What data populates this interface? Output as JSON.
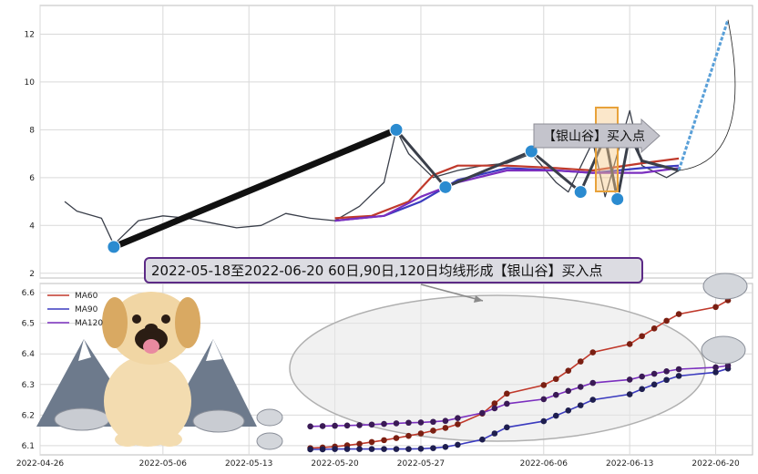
{
  "chart_data": [
    {
      "type": "line",
      "title": "",
      "ylim": [
        1.8,
        13.2
      ],
      "yticks": [
        2,
        4,
        6,
        8,
        10,
        12
      ],
      "xlim": [
        "2022-04-26",
        "2022-06-23"
      ],
      "grid": true,
      "series": [
        {
          "role": "price",
          "color": "#3a3f4a",
          "points": [
            [
              "2022-04-28",
              5.0
            ],
            [
              "2022-04-29",
              4.6
            ],
            [
              "2022-05-01",
              4.3
            ],
            [
              "2022-05-02",
              3.2
            ],
            [
              "2022-05-04",
              4.2
            ],
            [
              "2022-05-06",
              4.4
            ],
            [
              "2022-05-08",
              4.3
            ],
            [
              "2022-05-10",
              4.1
            ],
            [
              "2022-05-12",
              3.9
            ],
            [
              "2022-05-14",
              4.0
            ],
            [
              "2022-05-16",
              4.5
            ],
            [
              "2022-05-18",
              4.3
            ],
            [
              "2022-05-20",
              4.2
            ],
            [
              "2022-05-22",
              4.8
            ],
            [
              "2022-05-24",
              5.8
            ],
            [
              "2022-05-25",
              8.0
            ],
            [
              "2022-05-26",
              7.0
            ],
            [
              "2022-05-28",
              6.0
            ],
            [
              "2022-05-30",
              6.3
            ],
            [
              "2022-06-01",
              6.5
            ],
            [
              "2022-06-03",
              6.6
            ],
            [
              "2022-06-05",
              7.0
            ],
            [
              "2022-06-07",
              5.8
            ],
            [
              "2022-06-08",
              5.4
            ],
            [
              "2022-06-10",
              7.5
            ],
            [
              "2022-06-11",
              5.2
            ],
            [
              "2022-06-13",
              8.8
            ],
            [
              "2022-06-14",
              6.5
            ],
            [
              "2022-06-16",
              6.0
            ],
            [
              "2022-06-17",
              6.3
            ]
          ]
        },
        {
          "name": "MA60",
          "color": "#c0392b",
          "points": [
            [
              "2022-05-20",
              4.3
            ],
            [
              "2022-05-23",
              4.4
            ],
            [
              "2022-05-26",
              5.0
            ],
            [
              "2022-05-28",
              6.1
            ],
            [
              "2022-05-30",
              6.5
            ],
            [
              "2022-06-03",
              6.5
            ],
            [
              "2022-06-07",
              6.4
            ],
            [
              "2022-06-10",
              6.3
            ],
            [
              "2022-06-14",
              6.6
            ],
            [
              "2022-06-17",
              6.8
            ]
          ]
        },
        {
          "name": "MA90",
          "color": "#3b3bbf",
          "points": [
            [
              "2022-05-20",
              4.2
            ],
            [
              "2022-05-24",
              4.4
            ],
            [
              "2022-05-27",
              5.0
            ],
            [
              "2022-05-30",
              5.9
            ],
            [
              "2022-06-03",
              6.4
            ],
            [
              "2022-06-07",
              6.3
            ],
            [
              "2022-06-10",
              6.2
            ],
            [
              "2022-06-14",
              6.4
            ],
            [
              "2022-06-17",
              6.5
            ]
          ]
        },
        {
          "name": "MA120",
          "color": "#7b2fbf",
          "points": [
            [
              "2022-05-20",
              4.2
            ],
            [
              "2022-05-24",
              4.4
            ],
            [
              "2022-05-27",
              5.2
            ],
            [
              "2022-05-30",
              5.8
            ],
            [
              "2022-06-03",
              6.3
            ],
            [
              "2022-06-07",
              6.3
            ],
            [
              "2022-06-10",
              6.2
            ],
            [
              "2022-06-14",
              6.2
            ],
            [
              "2022-06-17",
              6.4
            ]
          ]
        },
        {
          "role": "trend",
          "color": "#111111",
          "points": [
            [
              "2022-05-02",
              3.1
            ],
            [
              "2022-05-25",
              8.0
            ]
          ]
        },
        {
          "role": "zigzag",
          "color": "#3a3f4a",
          "points": [
            [
              "2022-05-25",
              8.0
            ],
            [
              "2022-05-29",
              5.6
            ],
            [
              "2022-06-05",
              7.1
            ],
            [
              "2022-06-09",
              5.4
            ],
            [
              "2022-06-11",
              7.7
            ],
            [
              "2022-06-12",
              5.1
            ],
            [
              "2022-06-13",
              7.8
            ],
            [
              "2022-06-14",
              6.7
            ],
            [
              "2022-06-17",
              6.3
            ]
          ]
        },
        {
          "role": "projection",
          "color": "#5aa0d8",
          "points": [
            [
              "2022-06-17",
              6.3
            ],
            [
              "2022-06-21",
              12.6
            ]
          ]
        }
      ],
      "pivots": [
        [
          "2022-05-02",
          3.1
        ],
        [
          "2022-05-25",
          8.0
        ],
        [
          "2022-05-29",
          5.6
        ],
        [
          "2022-06-05",
          7.1
        ],
        [
          "2022-06-09",
          5.4
        ],
        [
          "2022-06-11",
          7.7
        ],
        [
          "2022-06-12",
          5.1
        ]
      ],
      "annotation": "【银山谷】买入点"
    },
    {
      "type": "line",
      "ylim": [
        6.07,
        6.63
      ],
      "yticks": [
        6.1,
        6.2,
        6.3,
        6.4,
        6.5,
        6.6
      ],
      "xlim": [
        "2022-04-26",
        "2022-06-23"
      ],
      "xticks": [
        "2022-04-26",
        "2022-05-06",
        "2022-05-13",
        "2022-05-20",
        "2022-05-27",
        "2022-06-06",
        "2022-06-13",
        "2022-06-20"
      ],
      "legend": "top-left",
      "grid": true,
      "series": [
        {
          "name": "MA60",
          "color": "#c0392b",
          "points": [
            [
              "2022-05-18",
              6.092
            ],
            [
              "2022-05-19",
              6.094
            ],
            [
              "2022-05-20",
              6.097
            ],
            [
              "2022-05-21",
              6.101
            ],
            [
              "2022-05-22",
              6.106
            ],
            [
              "2022-05-23",
              6.112
            ],
            [
              "2022-05-24",
              6.118
            ],
            [
              "2022-05-25",
              6.125
            ],
            [
              "2022-05-26",
              6.132
            ],
            [
              "2022-05-27",
              6.14
            ],
            [
              "2022-05-28",
              6.149
            ],
            [
              "2022-05-29",
              6.158
            ],
            [
              "2022-05-30",
              6.17
            ],
            [
              "2022-06-01",
              6.205
            ],
            [
              "2022-06-02",
              6.238
            ],
            [
              "2022-06-03",
              6.27
            ],
            [
              "2022-06-06",
              6.298
            ],
            [
              "2022-06-07",
              6.318
            ],
            [
              "2022-06-08",
              6.345
            ],
            [
              "2022-06-09",
              6.375
            ],
            [
              "2022-06-10",
              6.405
            ],
            [
              "2022-06-13",
              6.432
            ],
            [
              "2022-06-14",
              6.458
            ],
            [
              "2022-06-15",
              6.483
            ],
            [
              "2022-06-16",
              6.508
            ],
            [
              "2022-06-17",
              6.53
            ],
            [
              "2022-06-20",
              6.553
            ],
            [
              "2022-06-21",
              6.575
            ]
          ]
        },
        {
          "name": "MA90",
          "color": "#3b3bbf",
          "points": [
            [
              "2022-05-18",
              6.088
            ],
            [
              "2022-05-19",
              6.088
            ],
            [
              "2022-05-20",
              6.089
            ],
            [
              "2022-05-21",
              6.089
            ],
            [
              "2022-05-22",
              6.089
            ],
            [
              "2022-05-23",
              6.089
            ],
            [
              "2022-05-24",
              6.089
            ],
            [
              "2022-05-25",
              6.089
            ],
            [
              "2022-05-26",
              6.089
            ],
            [
              "2022-05-27",
              6.09
            ],
            [
              "2022-05-28",
              6.092
            ],
            [
              "2022-05-29",
              6.096
            ],
            [
              "2022-05-30",
              6.103
            ],
            [
              "2022-06-01",
              6.12
            ],
            [
              "2022-06-02",
              6.14
            ],
            [
              "2022-06-03",
              6.16
            ],
            [
              "2022-06-06",
              6.18
            ],
            [
              "2022-06-07",
              6.198
            ],
            [
              "2022-06-08",
              6.215
            ],
            [
              "2022-06-09",
              6.232
            ],
            [
              "2022-06-10",
              6.25
            ],
            [
              "2022-06-13",
              6.268
            ],
            [
              "2022-06-14",
              6.285
            ],
            [
              "2022-06-15",
              6.3
            ],
            [
              "2022-06-16",
              6.315
            ],
            [
              "2022-06-17",
              6.328
            ],
            [
              "2022-06-20",
              6.34
            ],
            [
              "2022-06-21",
              6.352
            ]
          ]
        },
        {
          "name": "MA120",
          "color": "#7b2fbf",
          "points": [
            [
              "2022-05-18",
              6.163
            ],
            [
              "2022-05-19",
              6.164
            ],
            [
              "2022-05-20",
              6.165
            ],
            [
              "2022-05-21",
              6.166
            ],
            [
              "2022-05-22",
              6.167
            ],
            [
              "2022-05-23",
              6.169
            ],
            [
              "2022-05-24",
              6.171
            ],
            [
              "2022-05-25",
              6.173
            ],
            [
              "2022-05-26",
              6.175
            ],
            [
              "2022-05-27",
              6.176
            ],
            [
              "2022-05-28",
              6.178
            ],
            [
              "2022-05-29",
              6.181
            ],
            [
              "2022-05-30",
              6.19
            ],
            [
              "2022-06-01",
              6.207
            ],
            [
              "2022-06-02",
              6.222
            ],
            [
              "2022-06-03",
              6.237
            ],
            [
              "2022-06-06",
              6.252
            ],
            [
              "2022-06-07",
              6.266
            ],
            [
              "2022-06-08",
              6.279
            ],
            [
              "2022-06-09",
              6.292
            ],
            [
              "2022-06-10",
              6.305
            ],
            [
              "2022-06-13",
              6.316
            ],
            [
              "2022-06-14",
              6.326
            ],
            [
              "2022-06-15",
              6.335
            ],
            [
              "2022-06-16",
              6.343
            ],
            [
              "2022-06-17",
              6.35
            ],
            [
              "2022-06-20",
              6.356
            ],
            [
              "2022-06-21",
              6.362
            ]
          ]
        }
      ],
      "banner": "2022-05-18至2022-06-20 60日,90日,120日均线形成【银山谷】买入点"
    }
  ]
}
